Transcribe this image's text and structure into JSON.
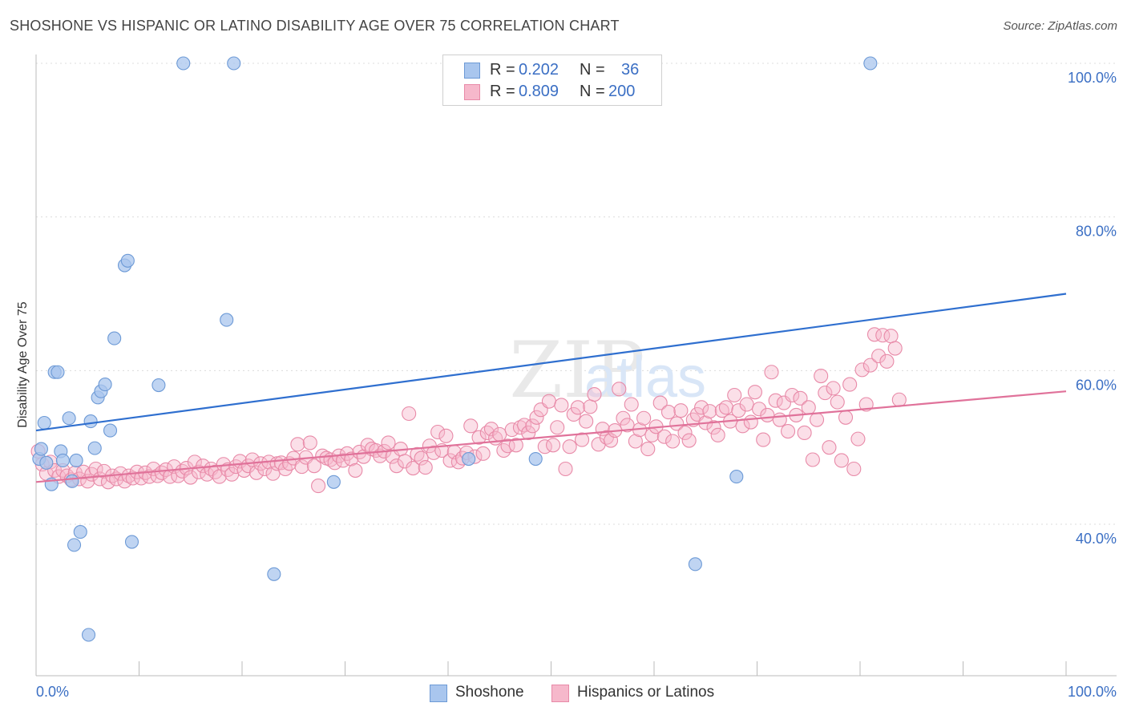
{
  "title": "SHOSHONE VS HISPANIC OR LATINO DISABILITY AGE OVER 75 CORRELATION CHART",
  "source": "Source: ZipAtlas.com",
  "watermark": "ZIPatlas",
  "colors": {
    "shoshone_fill": "#a9c6ee",
    "shoshone_stroke": "#6d9ad6",
    "shoshone_line": "#2f6fcf",
    "hispanic_fill": "#f6b8cb",
    "hispanic_stroke": "#e88aa8",
    "hispanic_line": "#e0729a",
    "tick_label": "#3b6fc4"
  },
  "legend_top": {
    "rows": [
      {
        "r_label": "R =",
        "r_value": "0.202",
        "n_label": "N =",
        "n_value": "36"
      },
      {
        "r_label": "R =",
        "r_value": "0.809",
        "n_label": "N =",
        "n_value": "200"
      }
    ]
  },
  "legend_bottom": {
    "items": [
      "Shoshone",
      "Hispanics or Latinos"
    ]
  },
  "chart_data": {
    "type": "scatter",
    "xlabel": "",
    "ylabel": "Disability Age Over 75",
    "xlim": [
      0,
      100
    ],
    "ylim": [
      20,
      102
    ],
    "x_tick_labels": [
      "0.0%",
      "100.0%"
    ],
    "y_ticks": [
      40,
      60,
      80,
      100
    ],
    "y_tick_labels": [
      "40.0%",
      "60.0%",
      "80.0%",
      "100.0%"
    ],
    "grid": true,
    "series": [
      {
        "name": "Shoshone",
        "trend": {
          "x": [
            0,
            100
          ],
          "y": [
            52.2,
            70.0
          ]
        },
        "points": [
          [
            0.3,
            48.5
          ],
          [
            0.5,
            49.8
          ],
          [
            0.8,
            53.2
          ],
          [
            1.0,
            48.0
          ],
          [
            1.5,
            45.2
          ],
          [
            1.8,
            59.8
          ],
          [
            2.1,
            59.8
          ],
          [
            2.4,
            49.5
          ],
          [
            2.6,
            48.3
          ],
          [
            3.2,
            53.8
          ],
          [
            3.5,
            45.6
          ],
          [
            3.7,
            37.3
          ],
          [
            3.9,
            48.3
          ],
          [
            4.3,
            39.0
          ],
          [
            5.3,
            53.4
          ],
          [
            5.7,
            49.9
          ],
          [
            6.0,
            56.5
          ],
          [
            6.3,
            57.3
          ],
          [
            6.7,
            58.2
          ],
          [
            7.2,
            52.2
          ],
          [
            7.6,
            64.2
          ],
          [
            8.6,
            73.7
          ],
          [
            8.9,
            74.3
          ],
          [
            9.3,
            37.7
          ],
          [
            11.9,
            58.1
          ],
          [
            14.3,
            100.0
          ],
          [
            18.5,
            66.6
          ],
          [
            19.2,
            100.0
          ],
          [
            23.1,
            33.5
          ],
          [
            28.9,
            45.5
          ],
          [
            42.0,
            48.5
          ],
          [
            48.5,
            48.5
          ],
          [
            64.0,
            34.8
          ],
          [
            68.0,
            46.2
          ],
          [
            81.0,
            100.0
          ],
          [
            5.1,
            25.6
          ]
        ]
      },
      {
        "name": "Hispanics or Latinos",
        "trend": {
          "x": [
            0,
            100
          ],
          "y": [
            45.5,
            57.3
          ]
        },
        "points": [
          [
            0.2,
            49.5
          ],
          [
            0.6,
            47.8
          ],
          [
            1.0,
            46.6
          ],
          [
            1.4,
            48.1
          ],
          [
            1.8,
            47.0
          ],
          [
            2.2,
            46.2
          ],
          [
            2.6,
            47.0
          ],
          [
            3.0,
            46.3
          ],
          [
            3.4,
            45.8
          ],
          [
            3.8,
            46.7
          ],
          [
            4.2,
            45.9
          ],
          [
            4.6,
            46.8
          ],
          [
            5.0,
            45.6
          ],
          [
            5.4,
            46.5
          ],
          [
            5.8,
            47.2
          ],
          [
            6.2,
            45.9
          ],
          [
            6.6,
            46.9
          ],
          [
            7.0,
            45.5
          ],
          [
            7.4,
            46.3
          ],
          [
            7.8,
            45.9
          ],
          [
            8.2,
            46.6
          ],
          [
            8.6,
            45.6
          ],
          [
            9.0,
            46.3
          ],
          [
            9.4,
            46.0
          ],
          [
            9.8,
            46.8
          ],
          [
            10.2,
            46.0
          ],
          [
            10.6,
            46.7
          ],
          [
            11.0,
            46.2
          ],
          [
            11.4,
            47.2
          ],
          [
            11.8,
            46.3
          ],
          [
            12.2,
            46.7
          ],
          [
            12.6,
            47.1
          ],
          [
            13.0,
            46.2
          ],
          [
            13.4,
            47.5
          ],
          [
            13.8,
            46.3
          ],
          [
            14.2,
            46.9
          ],
          [
            14.6,
            47.3
          ],
          [
            15.0,
            46.1
          ],
          [
            15.4,
            48.1
          ],
          [
            15.8,
            46.8
          ],
          [
            16.2,
            47.6
          ],
          [
            16.6,
            46.5
          ],
          [
            17.0,
            47.2
          ],
          [
            17.4,
            46.8
          ],
          [
            17.8,
            46.2
          ],
          [
            18.2,
            47.8
          ],
          [
            18.6,
            47.1
          ],
          [
            19.0,
            46.5
          ],
          [
            19.4,
            47.5
          ],
          [
            19.8,
            48.2
          ],
          [
            20.2,
            47.0
          ],
          [
            20.6,
            47.6
          ],
          [
            21.0,
            48.4
          ],
          [
            21.4,
            46.7
          ],
          [
            21.8,
            47.9
          ],
          [
            22.2,
            47.2
          ],
          [
            22.6,
            48.1
          ],
          [
            23.0,
            46.6
          ],
          [
            23.4,
            47.9
          ],
          [
            23.8,
            48.0
          ],
          [
            24.2,
            47.2
          ],
          [
            24.6,
            47.9
          ],
          [
            25.0,
            48.6
          ],
          [
            25.4,
            50.4
          ],
          [
            25.8,
            47.5
          ],
          [
            26.2,
            48.7
          ],
          [
            26.6,
            50.6
          ],
          [
            27.0,
            47.6
          ],
          [
            27.4,
            45.0
          ],
          [
            27.8,
            48.9
          ],
          [
            28.2,
            48.6
          ],
          [
            28.6,
            48.4
          ],
          [
            29.0,
            48.0
          ],
          [
            29.4,
            48.9
          ],
          [
            29.8,
            48.3
          ],
          [
            30.2,
            49.2
          ],
          [
            30.6,
            48.5
          ],
          [
            31.0,
            47.0
          ],
          [
            31.4,
            49.4
          ],
          [
            31.8,
            48.8
          ],
          [
            32.2,
            50.3
          ],
          [
            32.6,
            49.8
          ],
          [
            33.0,
            49.6
          ],
          [
            33.4,
            48.9
          ],
          [
            33.8,
            49.5
          ],
          [
            34.2,
            50.6
          ],
          [
            34.6,
            48.8
          ],
          [
            35.0,
            47.6
          ],
          [
            35.4,
            49.8
          ],
          [
            35.8,
            48.2
          ],
          [
            36.2,
            54.4
          ],
          [
            36.6,
            47.3
          ],
          [
            37.0,
            49.1
          ],
          [
            37.4,
            48.6
          ],
          [
            37.8,
            47.4
          ],
          [
            38.2,
            50.2
          ],
          [
            38.6,
            49.3
          ],
          [
            39.0,
            52.0
          ],
          [
            39.4,
            49.6
          ],
          [
            39.8,
            51.5
          ],
          [
            40.2,
            48.3
          ],
          [
            40.6,
            49.4
          ],
          [
            41.0,
            48.1
          ],
          [
            41.4,
            48.6
          ],
          [
            41.8,
            49.3
          ],
          [
            42.2,
            52.8
          ],
          [
            42.6,
            48.8
          ],
          [
            43.0,
            51.3
          ],
          [
            43.4,
            49.2
          ],
          [
            43.8,
            51.9
          ],
          [
            44.2,
            52.4
          ],
          [
            44.6,
            51.2
          ],
          [
            45.0,
            51.7
          ],
          [
            45.4,
            49.6
          ],
          [
            45.8,
            50.2
          ],
          [
            46.2,
            52.3
          ],
          [
            46.6,
            50.3
          ],
          [
            47.0,
            52.6
          ],
          [
            47.4,
            52.9
          ],
          [
            47.8,
            51.9
          ],
          [
            48.2,
            52.8
          ],
          [
            48.6,
            53.9
          ],
          [
            49.0,
            54.9
          ],
          [
            49.4,
            50.1
          ],
          [
            49.8,
            56.0
          ],
          [
            50.2,
            50.3
          ],
          [
            50.6,
            52.6
          ],
          [
            51.0,
            55.5
          ],
          [
            51.4,
            47.2
          ],
          [
            51.8,
            50.1
          ],
          [
            52.2,
            54.3
          ],
          [
            52.6,
            55.2
          ],
          [
            53.0,
            51.0
          ],
          [
            53.4,
            53.4
          ],
          [
            53.8,
            55.3
          ],
          [
            54.2,
            56.9
          ],
          [
            54.6,
            50.4
          ],
          [
            55.0,
            52.4
          ],
          [
            55.4,
            51.3
          ],
          [
            55.8,
            50.9
          ],
          [
            56.2,
            52.2
          ],
          [
            56.6,
            57.6
          ],
          [
            57.0,
            53.8
          ],
          [
            57.4,
            52.9
          ],
          [
            57.8,
            55.6
          ],
          [
            58.2,
            50.8
          ],
          [
            58.6,
            52.3
          ],
          [
            59.0,
            53.8
          ],
          [
            59.4,
            49.8
          ],
          [
            59.8,
            51.6
          ],
          [
            60.2,
            52.7
          ],
          [
            60.6,
            55.8
          ],
          [
            61.0,
            51.4
          ],
          [
            61.4,
            54.6
          ],
          [
            61.8,
            50.8
          ],
          [
            62.2,
            53.1
          ],
          [
            62.6,
            54.8
          ],
          [
            63.0,
            51.9
          ],
          [
            63.4,
            50.9
          ],
          [
            63.8,
            53.6
          ],
          [
            64.2,
            54.3
          ],
          [
            64.6,
            55.2
          ],
          [
            65.0,
            53.2
          ],
          [
            65.4,
            54.7
          ],
          [
            65.8,
            52.6
          ],
          [
            66.2,
            51.6
          ],
          [
            66.6,
            54.8
          ],
          [
            67.0,
            55.2
          ],
          [
            67.4,
            53.4
          ],
          [
            67.8,
            56.8
          ],
          [
            68.2,
            54.8
          ],
          [
            68.6,
            52.8
          ],
          [
            69.0,
            55.6
          ],
          [
            69.4,
            53.3
          ],
          [
            69.8,
            57.2
          ],
          [
            70.2,
            55.0
          ],
          [
            70.6,
            51.0
          ],
          [
            71.0,
            54.2
          ],
          [
            71.4,
            59.8
          ],
          [
            71.8,
            56.1
          ],
          [
            72.2,
            53.6
          ],
          [
            72.6,
            55.8
          ],
          [
            73.0,
            52.1
          ],
          [
            73.4,
            56.8
          ],
          [
            73.8,
            54.2
          ],
          [
            74.2,
            56.4
          ],
          [
            74.6,
            51.9
          ],
          [
            75.0,
            55.2
          ],
          [
            75.4,
            48.4
          ],
          [
            75.8,
            53.6
          ],
          [
            76.2,
            59.3
          ],
          [
            76.6,
            57.1
          ],
          [
            77.0,
            50.0
          ],
          [
            77.4,
            57.7
          ],
          [
            77.8,
            55.9
          ],
          [
            78.2,
            48.3
          ],
          [
            78.6,
            53.9
          ],
          [
            79.0,
            58.2
          ],
          [
            79.4,
            47.2
          ],
          [
            79.8,
            51.1
          ],
          [
            80.2,
            60.1
          ],
          [
            80.6,
            55.6
          ],
          [
            81.0,
            60.7
          ],
          [
            81.4,
            64.7
          ],
          [
            81.8,
            61.9
          ],
          [
            82.2,
            64.6
          ],
          [
            82.6,
            61.2
          ],
          [
            83.0,
            64.5
          ],
          [
            83.4,
            62.9
          ],
          [
            83.8,
            56.2
          ]
        ]
      }
    ]
  }
}
